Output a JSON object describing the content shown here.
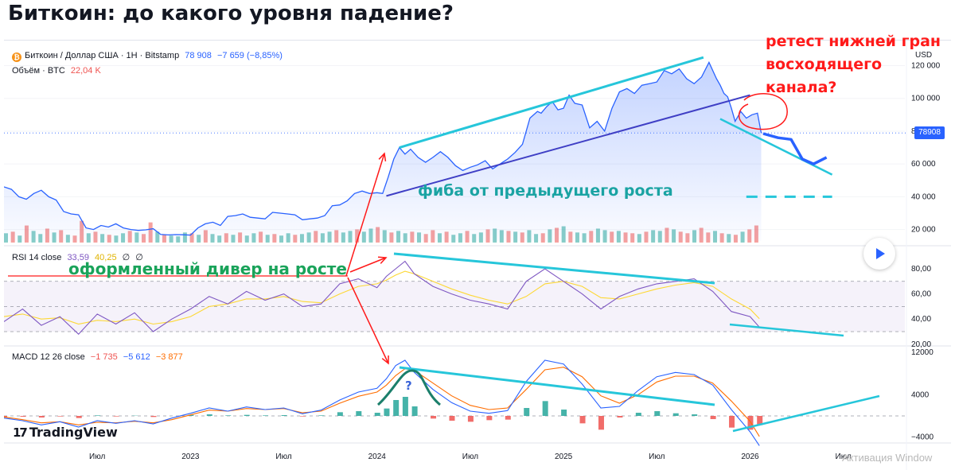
{
  "page": {
    "title": "Биткоин: до какого уровня падение?"
  },
  "main_legend": {
    "symbol": "Биткоин / Доллар США · 1H · Bitstamp",
    "logo_letter": "₿",
    "price": "78 908",
    "change": "−7 659 (−8,85%)",
    "volume_label": "Объём · BTC",
    "volume_value": "22,04 K"
  },
  "rsi_legend": {
    "label": "RSI 14 close",
    "rsi": "33,59",
    "ma": "40,25",
    "extra1": "∅",
    "extra2": "∅"
  },
  "macd_legend": {
    "label": "MACD 12 26 close",
    "hist": "−1 735",
    "macd": "−5 612",
    "signal": "−3 877"
  },
  "price_axis": {
    "currency": "USD",
    "last_price": "78908"
  },
  "watermark": {
    "brand": "TradingView",
    "activation": "Активация Window"
  },
  "annotations": {
    "retest": [
      "ретест  нижней гран",
      "восходящего",
      "канала?"
    ],
    "fib": "фиба от предыдущего роста",
    "divergence": "оформленный дивер на росте",
    "question": "?"
  },
  "colors": {
    "price_line": "#2962ff",
    "channel": "#26c6da",
    "channel_lower": "#3f3fc5",
    "red_annotation": "#ff1a1a",
    "rsi_line": "#7e57c2",
    "rsi_ma": "#fdd835",
    "macd_line": "#2962ff",
    "signal_line": "#ff6d00",
    "hist_up": "#26a69a",
    "hist_down": "#ef5350",
    "vol_up": "#26a69a",
    "vol_down": "#ef5350"
  },
  "chart_data": [
    {
      "type": "area",
      "title": "Биткоин / Доллар США · 1H · Bitstamp",
      "x_ticks": [
        "Июл",
        "2023",
        "Июл",
        "2024",
        "Июл",
        "2025",
        "Июл",
        "2026",
        "Июл"
      ],
      "x_tick_values": [
        2022.5,
        2023.0,
        2023.5,
        2024.0,
        2024.5,
        2025.0,
        2025.5,
        2026.0,
        2026.5
      ],
      "y_ticks": [
        "120 000",
        "100 000",
        "80 000",
        "60 000",
        "40 000",
        "20 000"
      ],
      "y_tick_values": [
        120000,
        100000,
        80000,
        60000,
        40000,
        20000
      ],
      "ylim": [
        14000,
        128000
      ],
      "xlim": [
        2022.0,
        2026.83
      ],
      "series": [
        {
          "x": [
            2022.0,
            2022.04,
            2022.08,
            2022.12,
            2022.16,
            2022.2,
            2022.24,
            2022.28,
            2022.32,
            2022.36,
            2022.4,
            2022.44,
            2022.48,
            2022.52,
            2022.56,
            2022.6,
            2022.64,
            2022.68,
            2022.72,
            2022.76,
            2022.8,
            2022.84,
            2022.88,
            2022.92,
            2022.96,
            2023.0,
            2023.04,
            2023.08,
            2023.12,
            2023.16,
            2023.2,
            2023.24,
            2023.28,
            2023.32,
            2023.36,
            2023.4,
            2023.44,
            2023.48,
            2023.52,
            2023.56,
            2023.6,
            2023.64,
            2023.68,
            2023.72,
            2023.76,
            2023.8,
            2023.84,
            2023.88,
            2023.92,
            2023.96,
            2024.0,
            2024.03,
            2024.06,
            2024.09,
            2024.12,
            2024.15,
            2024.18,
            2024.22,
            2024.26,
            2024.3,
            2024.34,
            2024.38,
            2024.42,
            2024.46,
            2024.5,
            2024.54,
            2024.58,
            2024.62,
            2024.66,
            2024.7,
            2024.74,
            2024.78,
            2024.82,
            2024.86,
            2024.88,
            2024.91,
            2024.94,
            2024.97,
            2025.0,
            2025.03,
            2025.06,
            2025.1,
            2025.14,
            2025.18,
            2025.22,
            2025.26,
            2025.3,
            2025.34,
            2025.38,
            2025.42,
            2025.46,
            2025.5,
            2025.54,
            2025.58,
            2025.62,
            2025.66,
            2025.7,
            2025.74,
            2025.78,
            2025.82,
            2025.84,
            2025.86,
            2025.88,
            2025.9,
            2025.92,
            2025.95,
            2025.98,
            2026.01,
            2026.04,
            2026.06
          ],
          "y": [
            46000,
            44500,
            40000,
            38500,
            42000,
            44000,
            40000,
            38000,
            31000,
            29500,
            29000,
            21000,
            20000,
            22500,
            21500,
            23500,
            21000,
            20000,
            19500,
            19800,
            20500,
            17000,
            16700,
            16900,
            16800,
            16600,
            21000,
            23500,
            24500,
            22500,
            28000,
            28500,
            29500,
            27500,
            27000,
            26500,
            30500,
            30000,
            29500,
            29000,
            26000,
            26500,
            27000,
            28500,
            34500,
            35000,
            37500,
            42000,
            43500,
            42000,
            42500,
            42000,
            52000,
            63000,
            70000,
            66000,
            69000,
            64000,
            61000,
            64000,
            67500,
            64000,
            59000,
            56000,
            58000,
            59500,
            62000,
            57000,
            60000,
            63000,
            67000,
            72000,
            88000,
            92000,
            91000,
            95000,
            98000,
            93000,
            94000,
            102000,
            97000,
            96000,
            82000,
            86000,
            80000,
            94000,
            104000,
            106000,
            103000,
            108000,
            109000,
            110000,
            117000,
            115000,
            118000,
            112000,
            109000,
            113000,
            122000,
            112000,
            108000,
            103000,
            101000,
            94000,
            86000,
            92000,
            88000,
            90000,
            91000,
            78908
          ]
        }
      ],
      "channel_upper": [
        [
          2024.12,
          70000
        ],
        [
          2025.75,
          125000
        ]
      ],
      "channel_lower": [
        [
          2024.05,
          40500
        ],
        [
          2026.0,
          102000
        ]
      ],
      "projected_channel_line": [
        [
          2025.84,
          87500
        ],
        [
          2026.44,
          53500
        ]
      ],
      "fib_level": [
        [
          2025.98,
          40000
        ],
        [
          2026.44,
          40000
        ]
      ],
      "projected_path": [
        [
          2026.07,
          78500
        ],
        [
          2026.15,
          76000
        ],
        [
          2026.22,
          75000
        ],
        [
          2026.28,
          63000
        ],
        [
          2026.34,
          60000
        ],
        [
          2026.41,
          64000
        ]
      ],
      "volume": {
        "ylim": [
          0,
          40000
        ],
        "values": [
          12000,
          14000,
          9000,
          22000,
          15000,
          11000,
          18000,
          13000,
          16000,
          10000,
          9000,
          28000,
          12000,
          14000,
          11000,
          10000,
          9000,
          12000,
          15000,
          13000,
          11000,
          26000,
          14000,
          10000,
          9000,
          8000,
          13000,
          12000,
          10000,
          16000,
          11000,
          9000,
          12000,
          10000,
          13000,
          9000,
          12000,
          14000,
          10000,
          11000,
          9000,
          12000,
          10000,
          11000,
          13000,
          15000,
          12000,
          14000,
          16000,
          13000,
          15000,
          17000,
          14000,
          18000,
          20000,
          16000,
          13000,
          15000,
          12000,
          14000,
          13000,
          11000,
          16000,
          12000,
          14000,
          10000,
          12000,
          15000,
          11000,
          13000,
          17000,
          18000,
          16000,
          15000,
          14000,
          13000,
          16000,
          11000,
          12000,
          17000,
          19000,
          21000,
          14000,
          13000,
          12000,
          15000,
          18000,
          16000,
          14000,
          15000,
          13000,
          12000,
          11000,
          14000,
          16000,
          15000,
          19000,
          17000,
          14000,
          12000,
          16000,
          19000,
          13000,
          15000,
          12000,
          11000,
          10000,
          14000,
          17000,
          22040
        ],
        "up": [
          1,
          0,
          1,
          0,
          1,
          1,
          0,
          1,
          0,
          1,
          0,
          0,
          1,
          0,
          1,
          0,
          1,
          1,
          0,
          1,
          0,
          0,
          1,
          0,
          1,
          1,
          1,
          0,
          1,
          0,
          1,
          1,
          0,
          1,
          0,
          1,
          1,
          0,
          1,
          0,
          1,
          1,
          0,
          1,
          1,
          0,
          1,
          1,
          0,
          1,
          1,
          0,
          1,
          1,
          0,
          1,
          0,
          1,
          1,
          0,
          1,
          0,
          0,
          1,
          0,
          1,
          1,
          0,
          1,
          1,
          0,
          1,
          1,
          0,
          1,
          0,
          1,
          1,
          0,
          1,
          0,
          1,
          0,
          1,
          1,
          0,
          1,
          1,
          0,
          1,
          0,
          0,
          1,
          0,
          1,
          1,
          0,
          1,
          0,
          0,
          1,
          0,
          0,
          1,
          0,
          1,
          0,
          1,
          0,
          0
        ]
      }
    },
    {
      "type": "line",
      "title": "RSI 14 close",
      "y_ticks": [
        "80,00",
        "60,00",
        "40,00",
        "20,00"
      ],
      "y_tick_values": [
        80,
        60,
        40,
        20
      ],
      "ylim": [
        18,
        92
      ],
      "bands": [
        30,
        70
      ],
      "x": [
        2022.0,
        2022.1,
        2022.2,
        2022.3,
        2022.4,
        2022.5,
        2022.6,
        2022.7,
        2022.8,
        2022.9,
        2023.0,
        2023.1,
        2023.2,
        2023.3,
        2023.4,
        2023.5,
        2023.6,
        2023.7,
        2023.8,
        2023.9,
        2024.0,
        2024.05,
        2024.1,
        2024.15,
        2024.2,
        2024.3,
        2024.4,
        2024.5,
        2024.6,
        2024.7,
        2024.8,
        2024.9,
        2025.0,
        2025.1,
        2025.2,
        2025.3,
        2025.4,
        2025.5,
        2025.6,
        2025.7,
        2025.8,
        2025.9,
        2026.0,
        2026.05
      ],
      "series": [
        {
          "values": [
            38,
            48,
            35,
            42,
            28,
            44,
            36,
            45,
            30,
            40,
            48,
            58,
            52,
            62,
            55,
            60,
            50,
            52,
            68,
            72,
            65,
            74,
            80,
            86,
            76,
            66,
            60,
            55,
            52,
            48,
            70,
            80,
            70,
            60,
            48,
            58,
            64,
            68,
            70,
            72,
            62,
            46,
            42,
            33.59
          ]
        },
        {
          "values": [
            42,
            44,
            40,
            41,
            36,
            39,
            38,
            40,
            36,
            38,
            42,
            50,
            52,
            56,
            56,
            58,
            54,
            53,
            60,
            66,
            68,
            71,
            75,
            78,
            76,
            70,
            64,
            59,
            55,
            52,
            58,
            68,
            70,
            66,
            57,
            56,
            60,
            64,
            67,
            69,
            66,
            56,
            48,
            40.25
          ]
        }
      ]
    },
    {
      "type": "bar",
      "title": "MACD 12 26 close",
      "y_ticks": [
        "12000",
        "4000",
        "−4000"
      ],
      "y_tick_values": [
        12000,
        4000,
        -4000
      ],
      "ylim": [
        -6000,
        13500
      ],
      "x": [
        2022.0,
        2022.1,
        2022.2,
        2022.3,
        2022.4,
        2022.5,
        2022.6,
        2022.7,
        2022.8,
        2022.9,
        2023.0,
        2023.1,
        2023.2,
        2023.3,
        2023.4,
        2023.5,
        2023.6,
        2023.7,
        2023.8,
        2023.9,
        2024.0,
        2024.05,
        2024.1,
        2024.15,
        2024.2,
        2024.3,
        2024.4,
        2024.5,
        2024.6,
        2024.7,
        2024.8,
        2024.9,
        2025.0,
        2025.1,
        2025.2,
        2025.3,
        2025.4,
        2025.5,
        2025.6,
        2025.7,
        2025.8,
        2025.9,
        2026.0,
        2026.05
      ],
      "series": [
        {
          "name": "Гистограмма",
          "values": [
            -200,
            -150,
            -300,
            -100,
            -400,
            100,
            -100,
            50,
            -200,
            0,
            200,
            300,
            100,
            200,
            100,
            150,
            -100,
            100,
            700,
            900,
            600,
            1400,
            3000,
            3600,
            1800,
            -500,
            -900,
            -1100,
            -800,
            -700,
            1500,
            2800,
            1200,
            -1400,
            -2600,
            -300,
            600,
            900,
            500,
            300,
            -600,
            -2200,
            -2600,
            -1735
          ]
        },
        {
          "name": "MACD",
          "values": [
            -400,
            -900,
            -1700,
            -1100,
            -2100,
            -900,
            -1400,
            -900,
            -1500,
            -400,
            500,
            1500,
            900,
            1700,
            1200,
            1500,
            400,
            1100,
            3000,
            4500,
            5200,
            7000,
            9500,
            10500,
            8200,
            5000,
            2500,
            900,
            500,
            1000,
            6500,
            10500,
            9800,
            6000,
            1500,
            1800,
            4800,
            7400,
            8200,
            7800,
            5800,
            1200,
            -3000,
            -5612
          ]
        },
        {
          "name": "Signal",
          "values": [
            -200,
            -700,
            -1300,
            -1100,
            -1700,
            -1200,
            -1300,
            -1000,
            -1300,
            -700,
            200,
            1100,
            900,
            1400,
            1200,
            1400,
            600,
            900,
            2400,
            3700,
            4500,
            5800,
            7600,
            8900,
            8600,
            6200,
            3800,
            2000,
            1200,
            1500,
            5000,
            8700,
            9200,
            7400,
            3800,
            2400,
            4000,
            6400,
            7500,
            7500,
            6200,
            2800,
            -1000,
            -3877
          ]
        }
      ]
    }
  ]
}
